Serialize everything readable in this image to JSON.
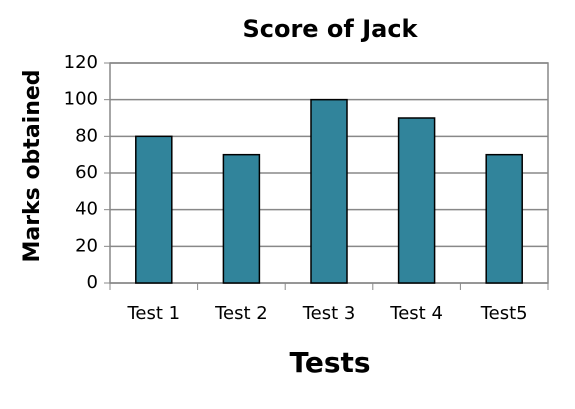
{
  "chart_data": {
    "type": "bar",
    "title": "Score of Jack",
    "x_label": "Tests",
    "y_label": "Marks obtained",
    "categories": [
      "Test 1",
      "Test 2",
      "Test 3",
      "Test 4",
      "Test5"
    ],
    "values": [
      80,
      70,
      100,
      90,
      70
    ],
    "color": "#31849b",
    "ylim": [
      0,
      120
    ],
    "yticks": [
      0,
      20,
      40,
      60,
      80,
      100,
      120
    ],
    "grid": true
  }
}
